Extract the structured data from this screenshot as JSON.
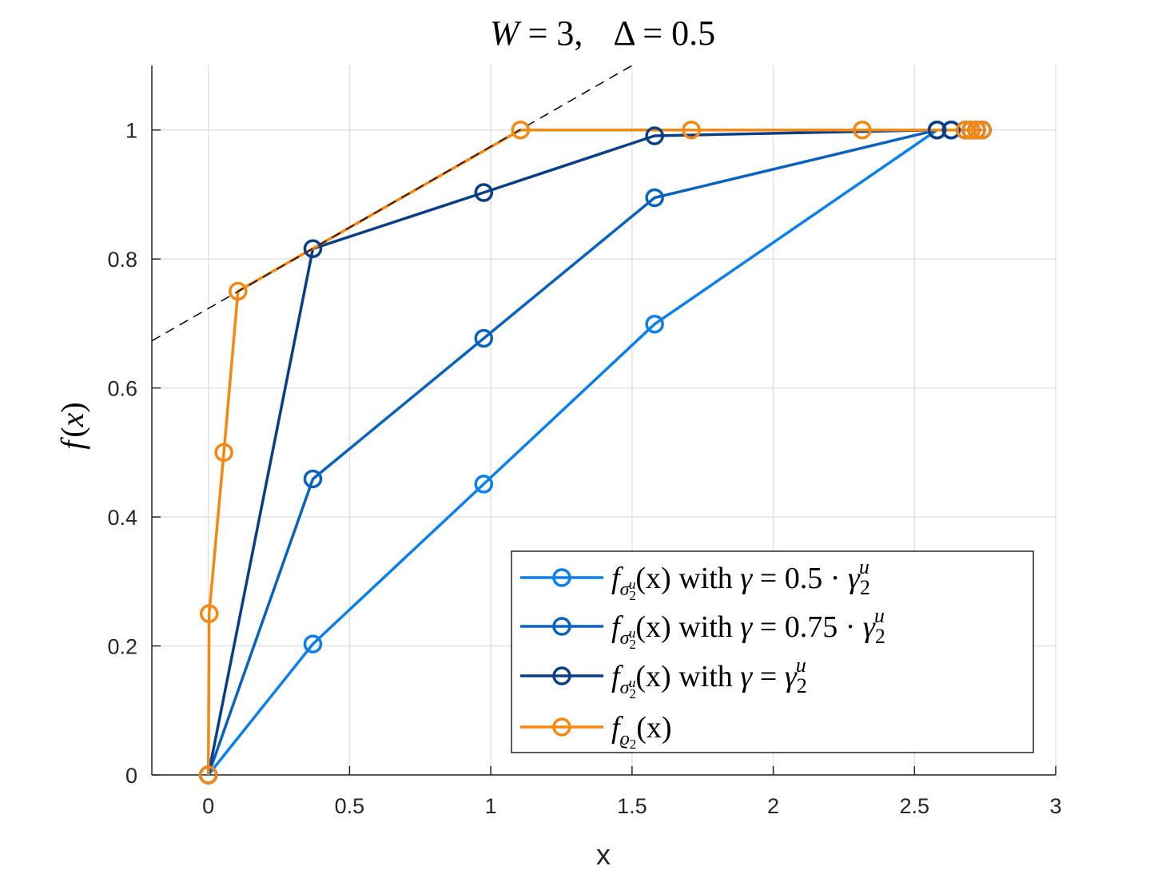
{
  "chart_data": {
    "type": "line",
    "title": "W = 3,    Δ = 0.5",
    "title_parts": {
      "w_var": "W",
      "w_eq": " = 3,",
      "delta_var": "Δ",
      "delta_eq": " = 0.5"
    },
    "xlabel": "x",
    "ylabel": "f(x)",
    "ylabel_parts": {
      "f": "f",
      "open": "(",
      "x": "x",
      "close": ")"
    },
    "xlim": [
      -0.2,
      3
    ],
    "ylim": [
      0,
      1.1
    ],
    "xticks": [
      0,
      0.5,
      1,
      1.5,
      2,
      2.5,
      3
    ],
    "xtick_labels": [
      "0",
      "0.5",
      "1",
      "1.5",
      "2",
      "2.5",
      "3"
    ],
    "yticks": [
      0,
      0.2,
      0.4,
      0.6,
      0.8,
      1
    ],
    "ytick_labels": [
      "0",
      "0.2",
      "0.4",
      "0.6",
      "0.8",
      "1"
    ],
    "grid": true,
    "legend_position": "bottom-right",
    "series": [
      {
        "name": "f_{σ₂ᵘ}(x) with γ = 0.5 · γ₂ᵘ",
        "legend": {
          "f": "f",
          "sub": "σ",
          "subsub": "2",
          "subsup": "u",
          "arg": "(x)",
          "with": " with ",
          "gamma": "γ",
          "eq": " = 0.5 · ",
          "gamma2": "γ",
          "g2sub": "2",
          "g2sup": "u"
        },
        "color": "#0a7ff0",
        "x": [
          0,
          0.37,
          0.975,
          1.58,
          2.58,
          2.63,
          2.68,
          2.7,
          2.72,
          2.74
        ],
        "y": [
          0,
          0.203,
          0.451,
          0.699,
          1,
          1,
          1,
          1,
          1,
          1
        ]
      },
      {
        "name": "f_{σ₂ᵘ}(x) with γ = 0.75 · γ₂ᵘ",
        "legend": {
          "f": "f",
          "sub": "σ",
          "subsub": "2",
          "subsup": "u",
          "arg": "(x)",
          "with": " with ",
          "gamma": "γ",
          "eq": " = 0.75 · ",
          "gamma2": "γ",
          "g2sub": "2",
          "g2sup": "u"
        },
        "color": "#0a62c0",
        "x": [
          0,
          0.37,
          0.975,
          1.58,
          2.58,
          2.63,
          2.68,
          2.7,
          2.72,
          2.74
        ],
        "y": [
          0,
          0.459,
          0.677,
          0.895,
          1,
          1,
          1,
          1,
          1,
          1
        ]
      },
      {
        "name": "f_{σ₂ᵘ}(x) with γ = γ₂ᵘ",
        "legend": {
          "f": "f",
          "sub": "σ",
          "subsub": "2",
          "subsup": "u",
          "arg": "(x)",
          "with": " with ",
          "gamma": "γ",
          "eq": " = ",
          "gamma2": "γ",
          "g2sub": "2",
          "g2sup": "u"
        },
        "color": "#0a3f88",
        "x": [
          0,
          0.37,
          0.975,
          1.58,
          2.58,
          2.63,
          2.68,
          2.7,
          2.72,
          2.74
        ],
        "y": [
          0,
          0.816,
          0.903,
          0.991,
          1,
          1,
          1,
          1,
          1,
          1
        ]
      },
      {
        "name": "f_{ϱ₂}(x)",
        "legend": {
          "f": "f",
          "sub": "ϱ",
          "subsub": "2",
          "arg": "(x)"
        },
        "color": "#f7870f",
        "x": [
          0,
          0.003,
          0.055,
          0.105,
          1.105,
          1.71,
          2.315,
          2.68,
          2.7,
          2.72,
          2.74
        ],
        "y": [
          0,
          0.25,
          0.5,
          0.75,
          1,
          1,
          1,
          1,
          1,
          1,
          1
        ]
      }
    ],
    "reference_line": {
      "style": "dashed",
      "color": "#000000",
      "x": [
        -0.2,
        1.5
      ],
      "y": [
        0.673,
        1.1
      ]
    }
  }
}
